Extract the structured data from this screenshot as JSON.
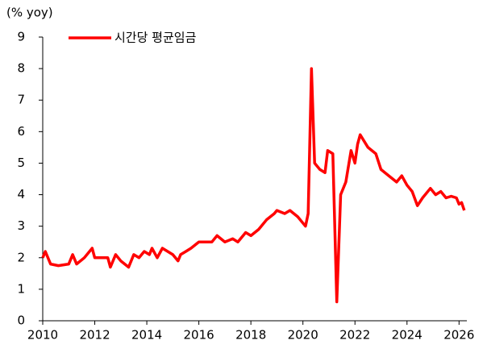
{
  "chart_data": {
    "type": "line",
    "y_axis_label": "(% yoy)",
    "xlim": [
      2010,
      2026.3
    ],
    "xticks": [
      2010,
      2012,
      2014,
      2016,
      2018,
      2020,
      2022,
      2024,
      2026
    ],
    "ylim": [
      0,
      9
    ],
    "yticks": [
      0,
      1,
      2,
      3,
      4,
      5,
      6,
      7,
      8,
      9
    ],
    "grid": false,
    "legend": "top-left",
    "x": [
      2010.0,
      2010.1,
      2010.3,
      2010.6,
      2011.0,
      2011.15,
      2011.3,
      2011.6,
      2011.9,
      2012.0,
      2012.5,
      2012.6,
      2012.8,
      2013.0,
      2013.3,
      2013.5,
      2013.7,
      2013.9,
      2014.1,
      2014.2,
      2014.4,
      2014.6,
      2015.0,
      2015.2,
      2015.3,
      2015.5,
      2015.7,
      2016.0,
      2016.5,
      2016.7,
      2017.0,
      2017.3,
      2017.5,
      2017.8,
      2018.0,
      2018.3,
      2018.6,
      2018.9,
      2019.0,
      2019.3,
      2019.5,
      2019.8,
      2020.0,
      2020.1,
      2020.2,
      2020.33,
      2020.45,
      2020.65,
      2020.85,
      2020.95,
      2021.15,
      2021.3,
      2021.45,
      2021.65,
      2021.85,
      2022.0,
      2022.1,
      2022.2,
      2022.5,
      2022.8,
      2023.0,
      2023.3,
      2023.6,
      2023.8,
      2024.0,
      2024.2,
      2024.4,
      2024.6,
      2024.9,
      2025.1,
      2025.3,
      2025.5,
      2025.7,
      2025.9,
      2026.0,
      2026.1,
      2026.2
    ],
    "series": [
      {
        "name": "시간당 평균임금",
        "color": "#ff0000",
        "values": [
          2.0,
          2.2,
          1.8,
          1.75,
          1.8,
          2.1,
          1.8,
          2.0,
          2.3,
          2.0,
          2.0,
          1.7,
          2.1,
          1.9,
          1.7,
          2.1,
          2.0,
          2.2,
          2.1,
          2.3,
          2.0,
          2.3,
          2.1,
          1.9,
          2.1,
          2.2,
          2.3,
          2.5,
          2.5,
          2.7,
          2.5,
          2.6,
          2.5,
          2.8,
          2.7,
          2.9,
          3.2,
          3.4,
          3.5,
          3.4,
          3.5,
          3.3,
          3.1,
          3.0,
          3.4,
          8.0,
          5.0,
          4.8,
          4.7,
          5.4,
          5.3,
          0.6,
          4.0,
          4.4,
          5.4,
          5.0,
          5.6,
          5.9,
          5.5,
          5.3,
          4.8,
          4.6,
          4.4,
          4.6,
          4.3,
          4.1,
          3.65,
          3.9,
          4.2,
          4.0,
          4.1,
          3.9,
          3.95,
          3.9,
          3.7,
          3.75,
          3.5
        ]
      }
    ]
  }
}
